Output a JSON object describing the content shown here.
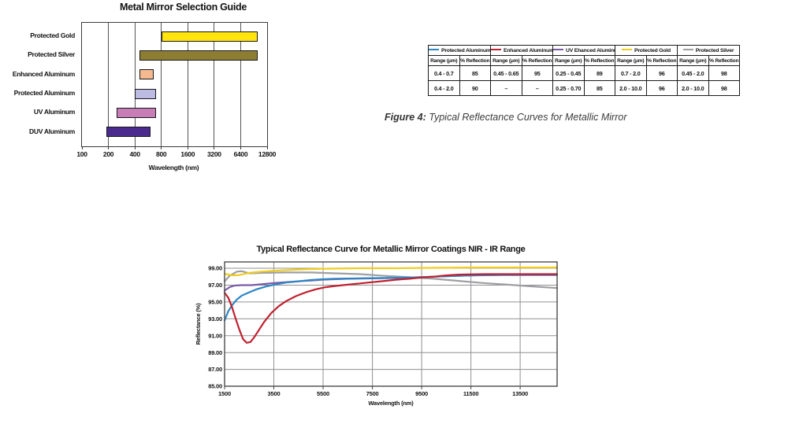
{
  "caption": {
    "prefix": "Figure 4:",
    "text": " Typical Reflectance Curves for Metallic Mirror"
  },
  "reflectance_table": {
    "col_headers": [
      "Range (μm)",
      "% Reflection"
    ],
    "groups": [
      {
        "name": "Protected Aluminum",
        "color": "#2e86c3",
        "rows": [
          [
            "0.4 - 0.7",
            "85"
          ],
          [
            "0.4 - 2.0",
            "90"
          ]
        ]
      },
      {
        "name": "Enhanced Aluminum",
        "color": "#c0202f",
        "rows": [
          [
            "0.45 - 0.65",
            "95"
          ],
          [
            "–",
            "–"
          ]
        ]
      },
      {
        "name": "UV Ehanced Aluminum",
        "color": "#7a5ba6",
        "rows": [
          [
            "0.25 - 0.45",
            "89"
          ],
          [
            "0.25 - 0.70",
            "85"
          ]
        ]
      },
      {
        "name": "Protected Gold",
        "color": "#f0cc1e",
        "rows": [
          [
            "0.7 - 2.0",
            "96"
          ],
          [
            "2.0 - 10.0",
            "96"
          ]
        ]
      },
      {
        "name": "Protected Silver",
        "color": "#9d9fa2",
        "rows": [
          [
            "0.45 - 2.0",
            "98"
          ],
          [
            "2.0 - 10.0",
            "98"
          ]
        ]
      }
    ]
  },
  "chart_data": [
    {
      "type": "bar",
      "title": "Metal Mirror Selection Guide",
      "xlabel": "Wavelength (nm)",
      "x_scale": "log2",
      "xlim": [
        100,
        12800
      ],
      "x_ticks": [
        100,
        200,
        400,
        800,
        1600,
        3200,
        6400,
        12800
      ],
      "categories": [
        "Protected Gold",
        "Protected Silver",
        "Enhanced Aluminum",
        "Protected Aluminum",
        "UV Aluminum",
        "DUV Aluminum"
      ],
      "ranges_nm": [
        [
          800,
          10000
        ],
        [
          450,
          10000
        ],
        [
          450,
          650
        ],
        [
          400,
          700
        ],
        [
          250,
          700
        ],
        [
          190,
          600
        ]
      ],
      "bar_colors": [
        "#ffe40e",
        "#8d7d33",
        "#f4b98e",
        "#bcbce2",
        "#c77eb6",
        "#4c2b8f"
      ]
    },
    {
      "type": "line",
      "title": "Typical Reflectance Curve for Metallic Mirror Coatings NIR - IR Range",
      "xlabel": "Wavelength (nm)",
      "ylabel": "Reflectance (%)",
      "xlim": [
        1500,
        15000
      ],
      "ylim": [
        85,
        99.75
      ],
      "x_ticks": [
        1500,
        3500,
        5500,
        7500,
        9500,
        11500,
        13500
      ],
      "y_ticks": [
        85,
        87,
        89,
        91,
        93,
        95,
        97,
        99
      ],
      "grid": true,
      "legend_position": "none (legend shown in table above)",
      "series": [
        {
          "name": "UV Enhanced Aluminum",
          "color": "#7a5ba6",
          "points": [
            [
              1500,
              96.35
            ],
            [
              1700,
              96.75
            ],
            [
              1900,
              96.95
            ],
            [
              2200,
              97.0
            ],
            [
              2600,
              97.0
            ],
            [
              3000,
              97.1
            ],
            [
              3500,
              97.25
            ],
            [
              4000,
              97.35
            ],
            [
              4500,
              97.45
            ],
            [
              5000,
              97.55
            ],
            [
              5500,
              97.65
            ],
            [
              6500,
              97.75
            ],
            [
              7500,
              97.8
            ],
            [
              8500,
              97.85
            ],
            [
              9500,
              97.95
            ],
            [
              10500,
              98.05
            ],
            [
              11500,
              98.15
            ],
            [
              13000,
              98.2
            ],
            [
              15000,
              98.2
            ]
          ]
        },
        {
          "name": "Protected Silver",
          "color": "#9d9fa2",
          "points": [
            [
              1500,
              97.45
            ],
            [
              1700,
              98.1
            ],
            [
              2000,
              98.6
            ],
            [
              2200,
              98.65
            ],
            [
              2500,
              98.4
            ],
            [
              3000,
              98.45
            ],
            [
              4000,
              98.5
            ],
            [
              5000,
              98.5
            ],
            [
              6000,
              98.4
            ],
            [
              7000,
              98.3
            ],
            [
              8000,
              98.1
            ],
            [
              9000,
              97.95
            ],
            [
              10000,
              97.75
            ],
            [
              11000,
              97.5
            ],
            [
              12000,
              97.25
            ],
            [
              13000,
              97.05
            ],
            [
              14000,
              96.85
            ],
            [
              15000,
              96.65
            ]
          ]
        },
        {
          "name": "Protected Gold",
          "color": "#f0cc1e",
          "points": [
            [
              1500,
              98.35
            ],
            [
              1800,
              98.15
            ],
            [
              2100,
              98.2
            ],
            [
              2500,
              98.45
            ],
            [
              3000,
              98.6
            ],
            [
              3500,
              98.7
            ],
            [
              4500,
              98.85
            ],
            [
              5500,
              98.95
            ],
            [
              7000,
              99.0
            ],
            [
              8500,
              99.0
            ],
            [
              10000,
              99.05
            ],
            [
              12000,
              99.1
            ],
            [
              15000,
              99.1
            ]
          ]
        },
        {
          "name": "Protected Aluminum",
          "color": "#2e86c3",
          "points": [
            [
              1500,
              92.8
            ],
            [
              1650,
              93.9
            ],
            [
              1800,
              94.6
            ],
            [
              2000,
              95.3
            ],
            [
              2200,
              95.75
            ],
            [
              2500,
              96.15
            ],
            [
              2800,
              96.5
            ],
            [
              3200,
              96.85
            ],
            [
              3600,
              97.1
            ],
            [
              4000,
              97.3
            ],
            [
              4500,
              97.45
            ],
            [
              5000,
              97.6
            ],
            [
              5500,
              97.7
            ],
            [
              6000,
              97.75
            ],
            [
              7000,
              97.8
            ],
            [
              8000,
              97.85
            ],
            [
              9000,
              97.9
            ],
            [
              10000,
              98.0
            ],
            [
              11000,
              98.1
            ],
            [
              12000,
              98.2
            ],
            [
              13500,
              98.25
            ],
            [
              15000,
              98.25
            ]
          ]
        },
        {
          "name": "Enhanced Aluminum",
          "color": "#c0202f",
          "points": [
            [
              1500,
              96.1
            ],
            [
              1650,
              95.5
            ],
            [
              1800,
              94.4
            ],
            [
              1950,
              93.0
            ],
            [
              2100,
              91.7
            ],
            [
              2250,
              90.6
            ],
            [
              2400,
              90.15
            ],
            [
              2550,
              90.25
            ],
            [
              2700,
              90.8
            ],
            [
              2900,
              91.7
            ],
            [
              3100,
              92.6
            ],
            [
              3400,
              93.7
            ],
            [
              3700,
              94.5
            ],
            [
              4000,
              95.1
            ],
            [
              4400,
              95.7
            ],
            [
              4800,
              96.15
            ],
            [
              5200,
              96.5
            ],
            [
              5600,
              96.75
            ],
            [
              6000,
              96.9
            ],
            [
              6500,
              97.05
            ],
            [
              7000,
              97.2
            ],
            [
              7500,
              97.35
            ],
            [
              8000,
              97.5
            ],
            [
              8500,
              97.65
            ],
            [
              9000,
              97.75
            ],
            [
              9500,
              97.9
            ],
            [
              10000,
              98.0
            ],
            [
              10500,
              98.15
            ],
            [
              11000,
              98.25
            ],
            [
              12000,
              98.3
            ],
            [
              13500,
              98.3
            ],
            [
              15000,
              98.3
            ]
          ]
        }
      ]
    }
  ]
}
